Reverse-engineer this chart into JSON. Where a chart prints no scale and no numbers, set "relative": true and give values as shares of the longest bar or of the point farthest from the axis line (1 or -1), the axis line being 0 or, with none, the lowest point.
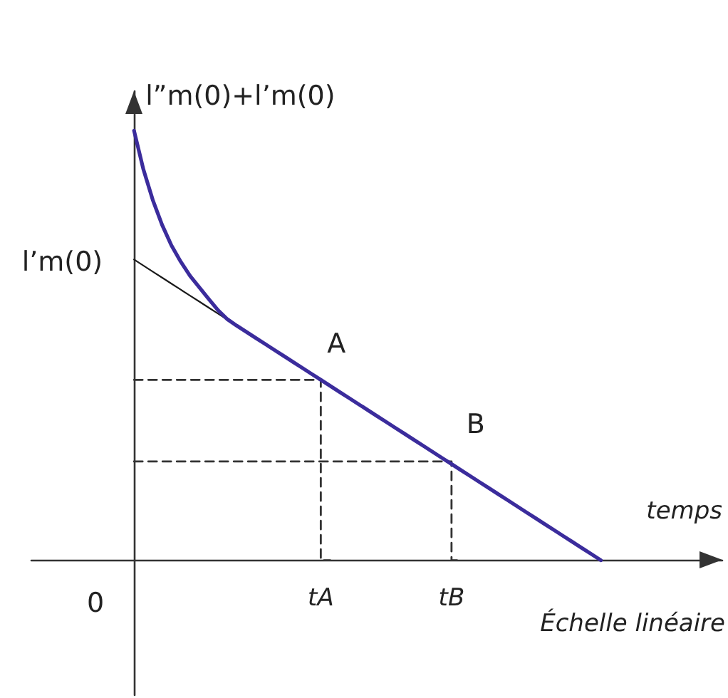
{
  "chart_data": {
    "type": "line",
    "relative": true,
    "xlabel": "temps",
    "grid": false,
    "marker": "none",
    "line_style": "solid",
    "tick_labels": "x",
    "categories": [
      null,
      null,
      null,
      null,
      null,
      null,
      null,
      null,
      null,
      null,
      null,
      null,
      null,
      null,
      null,
      null,
      null,
      null,
      null,
      null,
      null,
      null,
      null,
      null,
      null,
      null,
      null,
      null,
      null,
      null,
      null,
      "tA",
      null,
      null,
      null,
      null,
      null,
      null,
      null,
      null,
      null,
      null,
      null,
      null,
      null,
      "tB",
      null,
      null,
      null,
      null,
      null,
      null,
      null,
      null,
      null,
      null,
      null,
      null,
      null,
      null,
      null,
      null,
      null,
      null,
      null,
      null,
      null,
      null,
      null,
      null,
      null,
      null,
      null,
      null,
      null
    ],
    "series": [
      {
        "color": "#3b2c9c",
        "values": [
          null,
          null,
          null,
          null,
          null,
          null,
          null,
          null,
          null,
          null,
          null,
          1,
          0.91,
          0.839,
          0.781,
          0.733,
          0.695,
          0.662,
          0.635,
          0.608,
          0.582,
          0.561,
          0.546,
          0.532,
          0.518,
          0.504,
          0.49,
          0.476,
          0.462,
          0.448,
          0.434,
          0.42,
          0.406,
          0.392,
          0.378,
          0.364,
          0.35,
          0.336,
          0.322,
          0.308,
          0.294,
          0.28,
          0.266,
          0.252,
          0.238,
          0.224,
          0.21,
          0.196,
          0.182,
          0.168,
          0.154,
          0.14,
          0.126,
          0.112,
          0.098,
          0.084,
          0.07,
          0.056,
          0.042,
          0.028,
          0.014,
          0,
          null,
          null,
          null,
          null,
          null,
          null,
          null,
          null,
          null,
          null,
          null,
          null,
          null
        ]
      },
      {
        "color": "#1a1a1a",
        "values": [
          null,
          null,
          null,
          null,
          null,
          null,
          null,
          null,
          null,
          null,
          null,
          0.7,
          0.686,
          0.672,
          0.658,
          0.644,
          0.63,
          0.616,
          0.602,
          0.588,
          0.574,
          0.56,
          null,
          null,
          null,
          null,
          null,
          null,
          null,
          null,
          null,
          null,
          null,
          null,
          null,
          null,
          null,
          null,
          null,
          null,
          null,
          null,
          null,
          null,
          null,
          null,
          null,
          null,
          null,
          null,
          null,
          null,
          null,
          null,
          null,
          null,
          null,
          null,
          null,
          null,
          null,
          null,
          null,
          null,
          null,
          null,
          null,
          null,
          null,
          null,
          null,
          null,
          null,
          null,
          null
        ]
      },
      {
        "type": "step",
        "color": "#333333",
        "line_style": "dashed",
        "values": [
          null,
          null,
          null,
          null,
          null,
          null,
          null,
          null,
          null,
          null,
          null,
          0.42,
          0.42,
          0.42,
          0.42,
          0.42,
          0.42,
          0.42,
          0.42,
          0.42,
          0.42,
          0.42,
          0.42,
          0.42,
          0.42,
          0.42,
          0.42,
          0.42,
          0.42,
          0.42,
          0.42,
          0.42,
          0,
          null,
          null,
          null,
          null,
          null,
          null,
          null,
          null,
          null,
          null,
          null,
          null,
          null,
          null,
          null,
          null,
          null,
          null,
          null,
          null,
          null,
          null,
          null,
          null,
          null,
          null,
          null,
          null,
          null,
          null,
          null,
          null,
          null,
          null,
          null,
          null,
          null,
          null,
          null,
          null,
          null,
          null
        ]
      },
      {
        "type": "step",
        "color": "#333333",
        "line_style": "dashed",
        "values": [
          null,
          null,
          null,
          null,
          null,
          null,
          null,
          null,
          null,
          null,
          null,
          0.23,
          0.23,
          0.23,
          0.23,
          0.23,
          0.23,
          0.23,
          0.23,
          0.23,
          0.23,
          0.23,
          0.23,
          0.23,
          0.23,
          0.23,
          0.23,
          0.23,
          0.23,
          0.23,
          0.23,
          0.23,
          0.23,
          0.23,
          0.23,
          0.23,
          0.23,
          0.23,
          0.23,
          0.23,
          0.23,
          0.23,
          0.23,
          0.23,
          0.23,
          0.23,
          0,
          null,
          null,
          null,
          null,
          null,
          null,
          null,
          null,
          null,
          null,
          null,
          null,
          null,
          null,
          null,
          null,
          null,
          null,
          null,
          null,
          null,
          null,
          null,
          null,
          null,
          null,
          null,
          null
        ]
      }
    ],
    "annotations": [
      "l’m(0)",
      "l”m(0)+l’m(0)",
      {
        "text": "A",
        "x": "tA",
        "y": 0.42
      },
      {
        "text": "B",
        "x": "tB",
        "y": 0.23
      },
      "0",
      "Échelle linéaire"
    ]
  }
}
